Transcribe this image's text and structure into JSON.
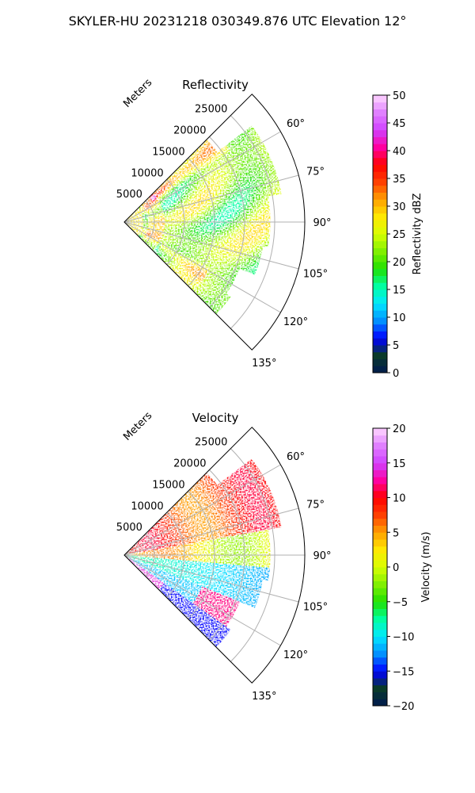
{
  "title": "SKYLER-HU  20231218  030349.876 UTC Elevation 12°",
  "chart_data": [
    {
      "type": "heatmap",
      "projection": "polar-sector",
      "title": "Reflectivity",
      "radial_axis_label": "Meters",
      "radial_ticks": [
        5000,
        10000,
        15000,
        20000,
        25000
      ],
      "radial_tick_labels": [
        "5000",
        "10000",
        "15000",
        "20000",
        "25000"
      ],
      "r_max": 30000,
      "angle_range_deg": [
        45,
        135
      ],
      "angle_ticks": [
        60,
        75,
        90,
        105,
        120,
        135
      ],
      "angle_tick_labels": [
        "60°",
        "75°",
        "90°",
        "105°",
        "120°",
        "135°"
      ],
      "grid": true,
      "colorbar": {
        "label": "Reflectivity dBZ",
        "range": [
          0,
          50
        ],
        "ticks": [
          0,
          5,
          10,
          15,
          20,
          25,
          30,
          35,
          40,
          45,
          50
        ],
        "tick_labels": [
          "0",
          "5",
          "10",
          "15",
          "20",
          "25",
          "30",
          "35",
          "40",
          "45",
          "50"
        ],
        "placement": "right"
      },
      "colors": [
        "#001a50",
        "#0a3a2a",
        "#0000ff",
        "#0090ff",
        "#00e8ff",
        "#00ffa0",
        "#20e000",
        "#80f000",
        "#d8ff00",
        "#ffe800",
        "#ffa000",
        "#ff4000",
        "#ff0000",
        "#ff00a0",
        "#d040ff",
        "#e080ff",
        "#ffd8ff"
      ]
    },
    {
      "type": "heatmap",
      "projection": "polar-sector",
      "title": "Velocity",
      "radial_axis_label": "Meters",
      "radial_ticks": [
        5000,
        10000,
        15000,
        20000,
        25000
      ],
      "radial_tick_labels": [
        "5000",
        "10000",
        "15000",
        "20000",
        "25000"
      ],
      "r_max": 30000,
      "angle_range_deg": [
        45,
        135
      ],
      "angle_ticks": [
        60,
        75,
        90,
        105,
        120,
        135
      ],
      "angle_tick_labels": [
        "60°",
        "75°",
        "90°",
        "105°",
        "120°",
        "135°"
      ],
      "grid": true,
      "colorbar": {
        "label": "Velocity (m/s)",
        "range": [
          -20,
          20
        ],
        "ticks": [
          -20,
          -15,
          -10,
          -5,
          0,
          5,
          10,
          15,
          20
        ],
        "tick_labels": [
          "−20",
          "−15",
          "−10",
          "−5",
          "0",
          "5",
          "10",
          "15",
          "20"
        ],
        "placement": "right"
      },
      "colors": [
        "#001a50",
        "#0a3a2a",
        "#0000ff",
        "#0090ff",
        "#00e8ff",
        "#00ffa0",
        "#20e000",
        "#80f000",
        "#d8ff00",
        "#ffe800",
        "#ffa000",
        "#ff4000",
        "#ff0000",
        "#ff00a0",
        "#d040ff",
        "#e080ff",
        "#ffd8ff"
      ]
    }
  ]
}
